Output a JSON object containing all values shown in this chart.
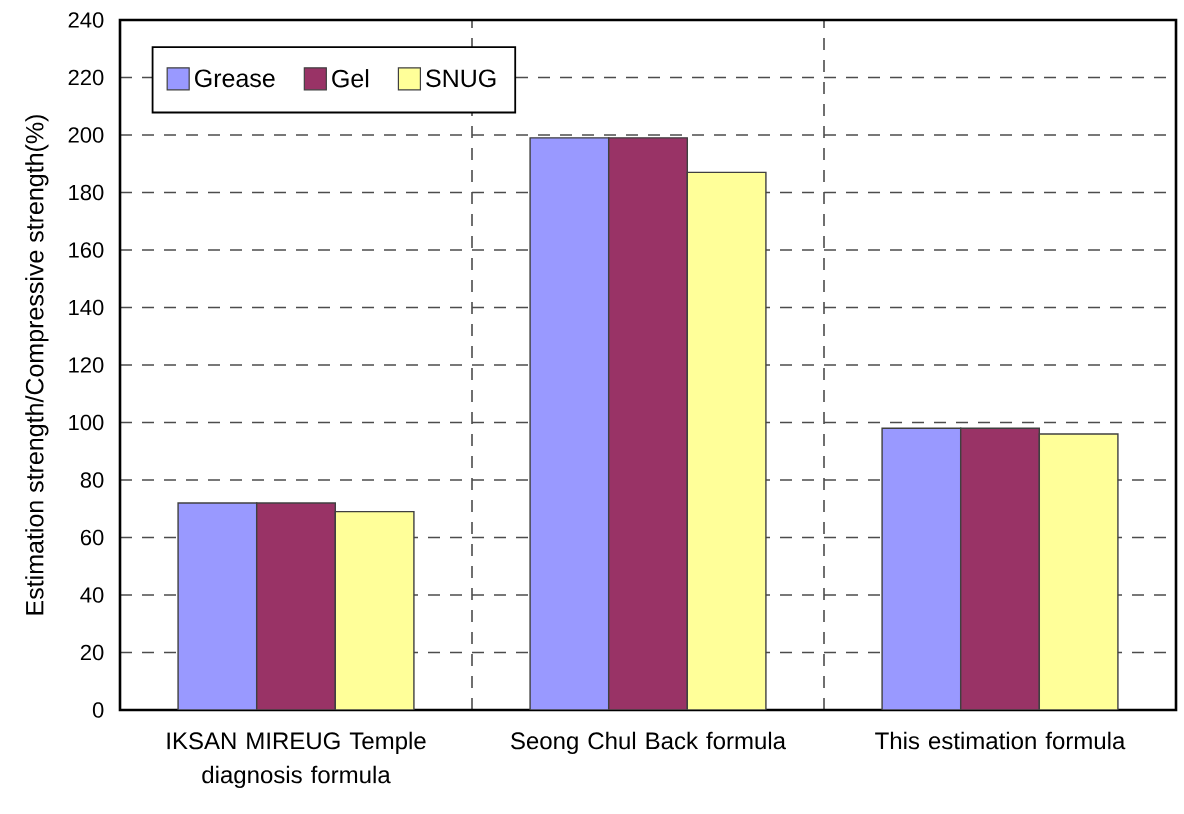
{
  "chart_data": {
    "type": "bar",
    "ylabel": "Estimation strength/Compressive strength(%)",
    "categories": [
      "IKSAN MIREUG Temple diagnosis formula",
      "Seong Chul Back formula",
      "This estimation formula"
    ],
    "series": [
      {
        "name": "Grease",
        "color": "#9999ff",
        "values": [
          72,
          199,
          98
        ]
      },
      {
        "name": "Gel",
        "color": "#993366",
        "values": [
          72,
          199,
          98
        ]
      },
      {
        "name": "SNUG",
        "color": "#ffff99",
        "values": [
          69,
          187,
          96
        ]
      }
    ],
    "ylim": [
      0,
      240
    ],
    "yticks": [
      0,
      20,
      40,
      60,
      80,
      100,
      120,
      140,
      160,
      180,
      200,
      220,
      240
    ],
    "grid": true,
    "legend": "top left"
  }
}
